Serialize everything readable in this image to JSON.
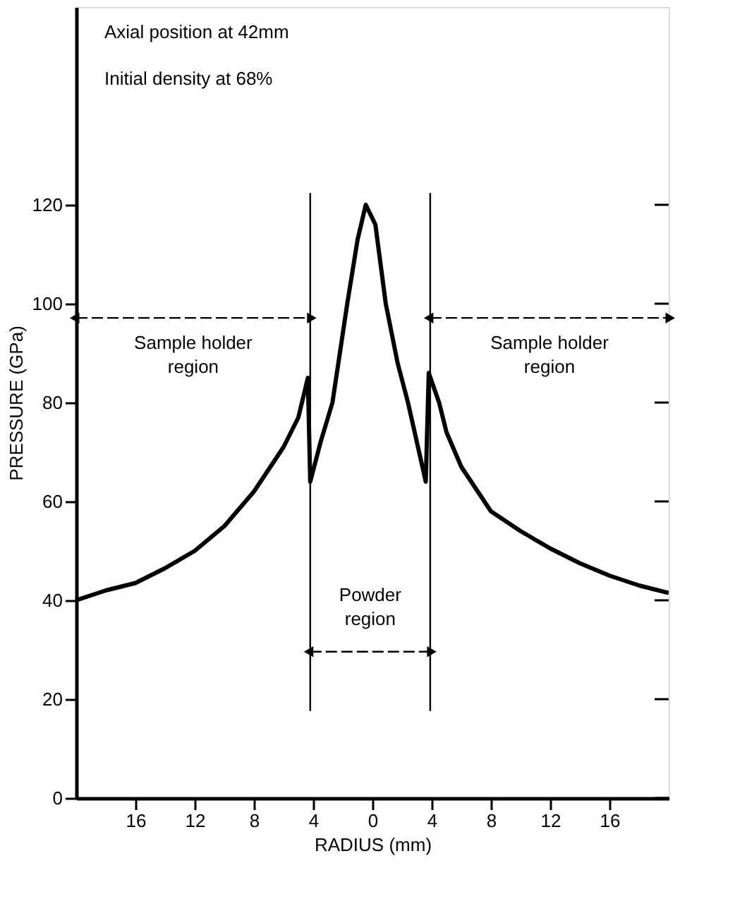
{
  "chart_data": {
    "type": "line",
    "xlabel": "RADIUS  (mm)",
    "ylabel": "PRESSURE  (GPa)",
    "annotations": [
      "Axial position at 42mm",
      "Initial density at 68%",
      "Sample holder region",
      "Powder region",
      "Sample holder region"
    ],
    "x": [
      -20,
      -18,
      -16,
      -14,
      -12,
      -10,
      -8,
      -6,
      -5,
      -4.36,
      -4.2,
      -3.5,
      -2.7,
      -1.7,
      -1,
      -0.45,
      0.2,
      0.9,
      1.7,
      2.4,
      3.6,
      3.8,
      4.5,
      5,
      6,
      8,
      10,
      12,
      14,
      16,
      18,
      20
    ],
    "series": [
      {
        "color": "#000000",
        "values": [
          40,
          42,
          43.5,
          46.5,
          50,
          55,
          62,
          71,
          77,
          85,
          64,
          72,
          80,
          100,
          113,
          120,
          116,
          100,
          88,
          80,
          64,
          86,
          80,
          74,
          67,
          58,
          54,
          50.5,
          47.5,
          45,
          43,
          41.5
        ]
      }
    ],
    "ref_lines": [
      {
        "axis": "x",
        "value": -4.2,
        "color": "#000000"
      },
      {
        "axis": "x",
        "value": 3.9,
        "color": "#000000"
      }
    ],
    "xlim": [
      -20,
      20
    ],
    "ylim": [
      0,
      160
    ],
    "xticks": [
      {
        "value": -16,
        "label": "16"
      },
      {
        "value": -12,
        "label": "12"
      },
      {
        "value": -8,
        "label": "8"
      },
      {
        "value": -4,
        "label": "4"
      },
      0,
      4,
      8,
      12,
      16
    ],
    "yticks": [
      0,
      20,
      40,
      60,
      80,
      100,
      120
    ],
    "grid": false,
    "marker": "none",
    "line_style": "solid"
  }
}
